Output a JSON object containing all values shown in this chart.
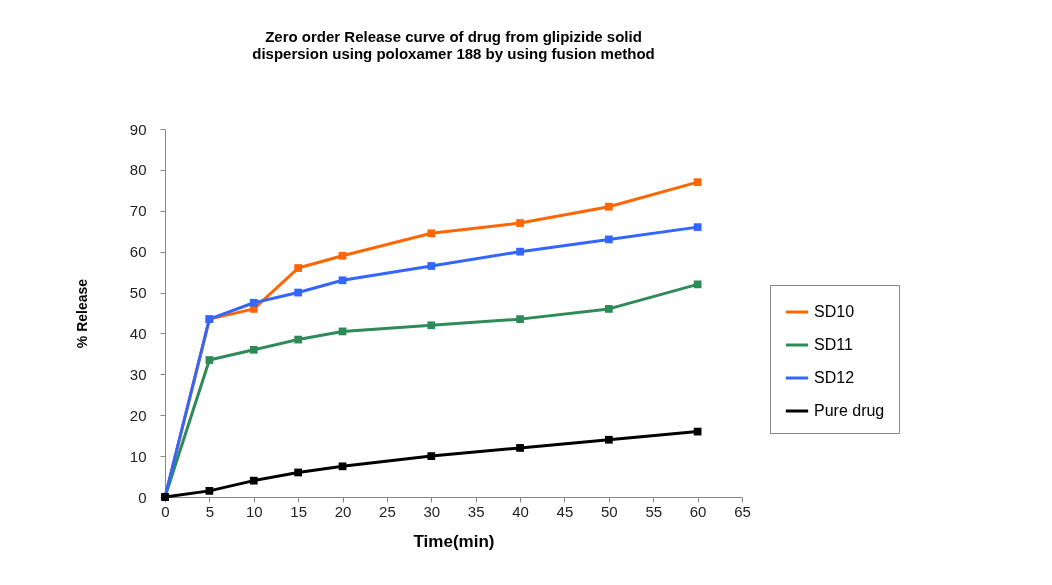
{
  "chart_data": {
    "type": "line",
    "title": [
      "Zero order Release curve of drug from glipizide solid",
      "dispersion using poloxamer 188 by using fusion method"
    ],
    "xlabel": "Time(min)",
    "ylabel": "% Release",
    "x": [
      0,
      5,
      10,
      15,
      20,
      30,
      40,
      50,
      60
    ],
    "series": [
      {
        "name": "SD10",
        "color": "#ff6600",
        "values": [
          0,
          43.5,
          46,
          56,
          59,
          64.5,
          67,
          71,
          77
        ]
      },
      {
        "name": "SD11",
        "color": "#2e8b57",
        "values": [
          0,
          33.5,
          36,
          38.5,
          40.5,
          42,
          43.5,
          46,
          52
        ]
      },
      {
        "name": "SD12",
        "color": "#3366ff",
        "values": [
          0,
          43.5,
          47.5,
          50,
          53,
          56.5,
          60,
          63,
          66
        ]
      },
      {
        "name": "Pure drug",
        "color": "#000000",
        "values": [
          0,
          1.5,
          4,
          6,
          7.5,
          10,
          12,
          14,
          16
        ]
      }
    ],
    "xlim": [
      0,
      65
    ],
    "xticks": [
      0,
      5,
      10,
      15,
      20,
      25,
      30,
      35,
      40,
      45,
      50,
      55,
      60,
      65
    ],
    "ylim": [
      0,
      90
    ],
    "yticks": [
      0,
      10,
      20,
      30,
      40,
      50,
      60,
      70,
      80,
      90
    ],
    "grid": false,
    "legend": "right",
    "marker": "square",
    "line_style": "solid"
  }
}
